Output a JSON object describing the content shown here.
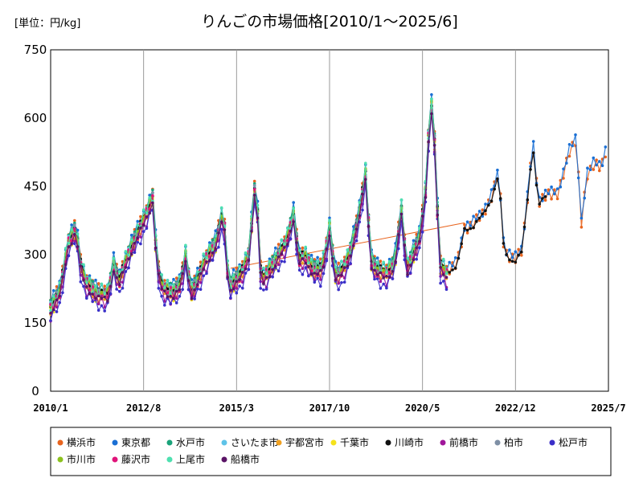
{
  "chart_data": {
    "type": "line",
    "unit_label": "[単位：円/kg]",
    "title": "りんごの市場価格[2010/1～2025/6]",
    "ylim": [
      0,
      750
    ],
    "yticks": [
      "0",
      "150",
      "300",
      "450",
      "600",
      "750"
    ],
    "xlim": [
      "2010-01",
      "2025-07"
    ],
    "xticks": [
      {
        "label": "2010/1",
        "t": 2010.0
      },
      {
        "label": "2012/8",
        "t": 2012.583
      },
      {
        "label": "2015/3",
        "t": 2015.167
      },
      {
        "label": "2017/10",
        "t": 2017.75
      },
      {
        "label": "2020/5",
        "t": 2020.333
      },
      {
        "label": "2022/12",
        "t": 2022.917
      },
      {
        "label": "2025/7",
        "t": 2025.5
      }
    ],
    "grid": "vertical",
    "legend_position": "bottom",
    "trend_segment": {
      "color": "#e8641e",
      "from": {
        "t": 2015.0,
        "v": 270
      },
      "to": {
        "t": 2021.5,
        "v": 370
      }
    },
    "series": [
      {
        "name": "横浜市",
        "color": "#e8641e",
        "offset": 8,
        "noise": 10,
        "start": 2010.0,
        "end": 2025.45
      },
      {
        "name": "東京都",
        "color": "#1a6fd4",
        "offset": 14,
        "noise": 9,
        "start": 2010.0,
        "end": 2025.45
      },
      {
        "name": "水戸市",
        "color": "#1aa37a",
        "offset": 10,
        "noise": 11,
        "start": 2010.0,
        "end": 2021.0
      },
      {
        "name": "さいたま市",
        "color": "#5ec3e8",
        "offset": 0,
        "noise": 10,
        "start": 2010.0,
        "end": 2021.0
      },
      {
        "name": "宇都宮市",
        "color": "#f0a020",
        "offset": -6,
        "noise": 11,
        "start": 2010.0,
        "end": 2021.0
      },
      {
        "name": "千葉市",
        "color": "#f5e21a",
        "offset": -8,
        "noise": 14,
        "start": 2010.0,
        "end": 2021.0
      },
      {
        "name": "川崎市",
        "color": "#111111",
        "offset": 4,
        "noise": 12,
        "start": 2010.0,
        "end": 2023.8
      },
      {
        "name": "前橋市",
        "color": "#a0169a",
        "offset": -18,
        "noise": 12,
        "start": 2010.0,
        "end": 2021.0
      },
      {
        "name": "柏市",
        "color": "#7e8fa5",
        "offset": -2,
        "noise": 9,
        "start": 2010.0,
        "end": 2021.0
      },
      {
        "name": "松戸市",
        "color": "#3a2fc8",
        "offset": -28,
        "noise": 14,
        "start": 2010.0,
        "end": 2021.0
      },
      {
        "name": "市川市",
        "color": "#8cc21e",
        "offset": 2,
        "noise": 10,
        "start": 2010.0,
        "end": 2021.0
      },
      {
        "name": "藤沢市",
        "color": "#e0147a",
        "offset": -4,
        "noise": 9,
        "start": 2010.0,
        "end": 2021.0
      },
      {
        "name": "上尾市",
        "color": "#4ee0b0",
        "offset": 6,
        "noise": 12,
        "start": 2010.0,
        "end": 2021.0
      },
      {
        "name": "船橋市",
        "color": "#5a1466",
        "offset": -12,
        "noise": 11,
        "start": 2010.0,
        "end": 2021.0
      }
    ],
    "base_profile": [
      [
        2010.0,
        185
      ],
      [
        2010.25,
        220
      ],
      [
        2010.5,
        330
      ],
      [
        2010.7,
        360
      ],
      [
        2010.85,
        270
      ],
      [
        2011.0,
        240
      ],
      [
        2011.3,
        215
      ],
      [
        2011.6,
        215
      ],
      [
        2011.75,
        280
      ],
      [
        2011.9,
        240
      ],
      [
        2012.05,
        280
      ],
      [
        2012.3,
        330
      ],
      [
        2012.6,
        380
      ],
      [
        2012.85,
        430
      ],
      [
        2012.95,
        280
      ],
      [
        2013.1,
        230
      ],
      [
        2013.4,
        220
      ],
      [
        2013.6,
        235
      ],
      [
        2013.75,
        300
      ],
      [
        2013.9,
        220
      ],
      [
        2014.05,
        240
      ],
      [
        2014.3,
        290
      ],
      [
        2014.6,
        330
      ],
      [
        2014.8,
        400
      ],
      [
        2014.95,
        230
      ],
      [
        2015.05,
        240
      ],
      [
        2015.3,
        260
      ],
      [
        2015.5,
        300
      ],
      [
        2015.7,
        470
      ],
      [
        2015.85,
        240
      ],
      [
        2016.0,
        260
      ],
      [
        2016.25,
        290
      ],
      [
        2016.55,
        330
      ],
      [
        2016.75,
        390
      ],
      [
        2016.9,
        290
      ],
      [
        2017.05,
        300
      ],
      [
        2017.3,
        270
      ],
      [
        2017.55,
        270
      ],
      [
        2017.75,
        360
      ],
      [
        2017.9,
        260
      ],
      [
        2018.05,
        260
      ],
      [
        2018.3,
        300
      ],
      [
        2018.55,
        380
      ],
      [
        2018.75,
        480
      ],
      [
        2018.9,
        290
      ],
      [
        2019.05,
        270
      ],
      [
        2019.3,
        260
      ],
      [
        2019.55,
        280
      ],
      [
        2019.75,
        400
      ],
      [
        2019.9,
        270
      ],
      [
        2020.05,
        300
      ],
      [
        2020.25,
        340
      ],
      [
        2020.45,
        460
      ],
      [
        2020.55,
        660
      ],
      [
        2020.7,
        520
      ],
      [
        2020.8,
        280
      ],
      [
        2021.0,
        260
      ],
      [
        2021.3,
        270
      ],
      [
        2021.5,
        350
      ],
      [
        2021.75,
        360
      ],
      [
        2022.0,
        380
      ],
      [
        2022.25,
        420
      ],
      [
        2022.45,
        470
      ],
      [
        2022.6,
        300
      ],
      [
        2022.9,
        280
      ],
      [
        2023.1,
        300
      ],
      [
        2023.25,
        420
      ],
      [
        2023.4,
        540
      ],
      [
        2023.55,
        400
      ],
      [
        2023.8,
        430
      ],
      [
        2024.1,
        420
      ],
      [
        2024.4,
        520
      ],
      [
        2024.6,
        540
      ],
      [
        2024.75,
        360
      ],
      [
        2024.9,
        470
      ],
      [
        2025.1,
        490
      ],
      [
        2025.3,
        480
      ],
      [
        2025.45,
        530
      ]
    ]
  },
  "legend": {
    "items": [
      "横浜市",
      "東京都",
      "水戸市",
      "さいたま市",
      "宇都宮市",
      "千葉市",
      "川崎市",
      "前橋市",
      "柏市",
      "松戸市",
      "市川市",
      "藤沢市",
      "上尾市",
      "船橋市"
    ]
  }
}
